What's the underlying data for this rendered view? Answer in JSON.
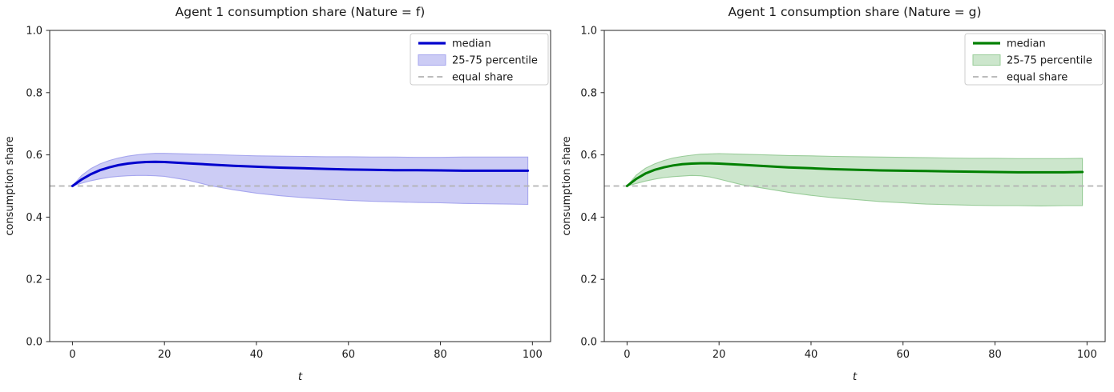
{
  "figure": {
    "background": "#ffffff"
  },
  "chart_data": [
    {
      "type": "line",
      "title": "Agent 1 consumption share (Nature = f)",
      "xlabel": "t",
      "ylabel": "consumption share",
      "xlim": [
        -4.95,
        103.95
      ],
      "ylim": [
        0.0,
        1.0
      ],
      "xticks": [
        0,
        20,
        40,
        60,
        80,
        100
      ],
      "yticks": [
        0.0,
        0.2,
        0.4,
        0.6,
        0.8,
        1.0
      ],
      "xtick_labels": [
        "0",
        "20",
        "40",
        "60",
        "80",
        "100"
      ],
      "ytick_labels": [
        "0.0",
        "0.2",
        "0.4",
        "0.6",
        "0.8",
        "1.0"
      ],
      "grid": false,
      "legend_position": "upper right",
      "legend": [
        {
          "label": "median",
          "type": "line"
        },
        {
          "label": "25-75 percentile",
          "type": "patch"
        },
        {
          "label": "equal share",
          "type": "dashed"
        }
      ],
      "equal_share_y": 0.5,
      "colors": {
        "median": "#0000cd",
        "band_fill": "#ccccf5",
        "band_edge": "#a6a6ee",
        "equal_share": "#b3b3b3"
      },
      "x": [
        0,
        2,
        4,
        6,
        8,
        10,
        12,
        14,
        16,
        18,
        20,
        25,
        30,
        35,
        40,
        45,
        50,
        55,
        60,
        65,
        70,
        75,
        80,
        85,
        90,
        95,
        99
      ],
      "series": [
        {
          "name": "median",
          "values": [
            0.5,
            0.521,
            0.538,
            0.551,
            0.56,
            0.567,
            0.572,
            0.575,
            0.577,
            0.578,
            0.577,
            0.573,
            0.569,
            0.565,
            0.562,
            0.559,
            0.557,
            0.555,
            0.553,
            0.552,
            0.551,
            0.551,
            0.55,
            0.549,
            0.549,
            0.549,
            0.549
          ]
        },
        {
          "name": "p25",
          "values": [
            0.5,
            0.509,
            0.517,
            0.523,
            0.528,
            0.531,
            0.533,
            0.534,
            0.534,
            0.533,
            0.531,
            0.519,
            0.501,
            0.488,
            0.477,
            0.469,
            0.463,
            0.458,
            0.454,
            0.451,
            0.449,
            0.447,
            0.446,
            0.444,
            0.443,
            0.442,
            0.441
          ]
        },
        {
          "name": "p75",
          "values": [
            0.5,
            0.534,
            0.556,
            0.571,
            0.582,
            0.59,
            0.596,
            0.6,
            0.603,
            0.605,
            0.605,
            0.603,
            0.601,
            0.599,
            0.597,
            0.596,
            0.595,
            0.594,
            0.594,
            0.593,
            0.593,
            0.592,
            0.592,
            0.593,
            0.593,
            0.593,
            0.593
          ]
        }
      ]
    },
    {
      "type": "line",
      "title": "Agent 1 consumption share (Nature = g)",
      "xlabel": "t",
      "ylabel": "consumption share",
      "xlim": [
        -4.95,
        103.95
      ],
      "ylim": [
        0.0,
        1.0
      ],
      "xticks": [
        0,
        20,
        40,
        60,
        80,
        100
      ],
      "yticks": [
        0.0,
        0.2,
        0.4,
        0.6,
        0.8,
        1.0
      ],
      "xtick_labels": [
        "0",
        "20",
        "40",
        "60",
        "80",
        "100"
      ],
      "ytick_labels": [
        "0.0",
        "0.2",
        "0.4",
        "0.6",
        "0.8",
        "1.0"
      ],
      "grid": false,
      "legend_position": "upper right",
      "legend": [
        {
          "label": "median",
          "type": "line"
        },
        {
          "label": "25-75 percentile",
          "type": "patch"
        },
        {
          "label": "equal share",
          "type": "dashed"
        }
      ],
      "equal_share_y": 0.5,
      "colors": {
        "median": "#008000",
        "band_fill": "#cce6cc",
        "band_edge": "#99cc99",
        "equal_share": "#b3b3b3"
      },
      "x": [
        0,
        2,
        4,
        6,
        8,
        10,
        12,
        14,
        16,
        18,
        20,
        25,
        30,
        35,
        40,
        45,
        50,
        55,
        60,
        65,
        70,
        75,
        80,
        85,
        90,
        95,
        99
      ],
      "series": [
        {
          "name": "median",
          "values": [
            0.5,
            0.523,
            0.54,
            0.552,
            0.56,
            0.566,
            0.57,
            0.572,
            0.573,
            0.573,
            0.572,
            0.568,
            0.564,
            0.56,
            0.557,
            0.554,
            0.552,
            0.55,
            0.549,
            0.548,
            0.547,
            0.546,
            0.545,
            0.544,
            0.544,
            0.544,
            0.545
          ]
        },
        {
          "name": "p25",
          "values": [
            0.5,
            0.508,
            0.516,
            0.522,
            0.527,
            0.53,
            0.532,
            0.534,
            0.533,
            0.529,
            0.522,
            0.504,
            0.492,
            0.48,
            0.47,
            0.462,
            0.456,
            0.45,
            0.446,
            0.442,
            0.44,
            0.438,
            0.437,
            0.437,
            0.436,
            0.437,
            0.437
          ]
        },
        {
          "name": "p75",
          "values": [
            0.5,
            0.535,
            0.557,
            0.571,
            0.582,
            0.59,
            0.595,
            0.599,
            0.602,
            0.603,
            0.604,
            0.602,
            0.6,
            0.598,
            0.597,
            0.595,
            0.594,
            0.593,
            0.592,
            0.591,
            0.59,
            0.589,
            0.589,
            0.588,
            0.588,
            0.588,
            0.589
          ]
        }
      ]
    }
  ]
}
